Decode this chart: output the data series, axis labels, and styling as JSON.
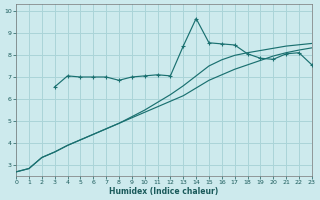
{
  "xlabel": "Humidex (Indice chaleur)",
  "bg_color": "#cdeaed",
  "grid_color": "#aad4d8",
  "line_color": "#1a7070",
  "xlim": [
    0,
    23
  ],
  "ylim": [
    2.5,
    10.3
  ],
  "xticks": [
    0,
    1,
    2,
    3,
    4,
    5,
    6,
    7,
    8,
    9,
    10,
    11,
    12,
    13,
    14,
    15,
    16,
    17,
    18,
    19,
    20,
    21,
    22,
    23
  ],
  "yticks": [
    3,
    4,
    5,
    6,
    7,
    8,
    9,
    10
  ],
  "line1_x": [
    0,
    1,
    2,
    3,
    4,
    5,
    6,
    7,
    8,
    9,
    10,
    11,
    12,
    13,
    14,
    15,
    16,
    17,
    18,
    19,
    20,
    21,
    22,
    23
  ],
  "line1_y": [
    2.7,
    2.85,
    3.35,
    3.6,
    3.9,
    4.15,
    4.4,
    4.65,
    4.9,
    5.15,
    5.4,
    5.65,
    5.9,
    6.15,
    6.5,
    6.85,
    7.1,
    7.35,
    7.55,
    7.75,
    7.95,
    8.1,
    8.22,
    8.32
  ],
  "line2_x": [
    0,
    1,
    2,
    3,
    4,
    5,
    6,
    7,
    8,
    9,
    10,
    11,
    12,
    13,
    14,
    15,
    16,
    17,
    18,
    19,
    20,
    21,
    22,
    23
  ],
  "line2_y": [
    2.7,
    2.85,
    3.35,
    3.6,
    3.9,
    4.15,
    4.4,
    4.65,
    4.9,
    5.2,
    5.5,
    5.85,
    6.2,
    6.6,
    7.05,
    7.5,
    7.78,
    7.98,
    8.1,
    8.2,
    8.3,
    8.4,
    8.46,
    8.52
  ],
  "line3_x": [
    3,
    4,
    5,
    6,
    7,
    8,
    9,
    10,
    11,
    12,
    13,
    14,
    15,
    16,
    17,
    18,
    19,
    20,
    21,
    22,
    23
  ],
  "line3_y": [
    6.55,
    7.05,
    7.0,
    7.0,
    7.0,
    6.85,
    7.0,
    7.05,
    7.1,
    7.05,
    8.4,
    9.65,
    8.55,
    8.5,
    8.45,
    8.05,
    7.85,
    7.8,
    8.05,
    8.1,
    7.55
  ]
}
